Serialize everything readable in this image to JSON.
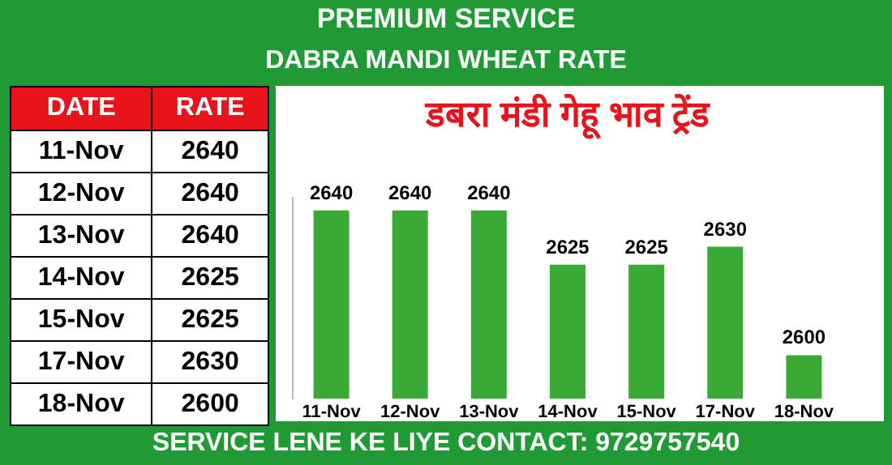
{
  "chart_data": {
    "type": "bar",
    "title": "डबरा मंडी गेहू भाव  ट्रेंड",
    "subtitle": "DABRA MANDI WHEAT RATE",
    "categories": [
      "11-Nov",
      "12-Nov",
      "13-Nov",
      "14-Nov",
      "15-Nov",
      "17-Nov",
      "18-Nov"
    ],
    "values": [
      2640,
      2640,
      2640,
      2625,
      2625,
      2630,
      2600
    ],
    "color": "#3aa935",
    "ylim": [
      2588,
      2644
    ],
    "data_labels": true,
    "annotations": [
      "PREMIUM SERVICE",
      "DATE",
      "RATE",
      "SERVICE LENE KE LIYE CONTACT: 9729757540",
      "2640",
      "2640",
      "2640",
      "2625",
      "2625",
      "2630",
      "2600"
    ]
  }
}
